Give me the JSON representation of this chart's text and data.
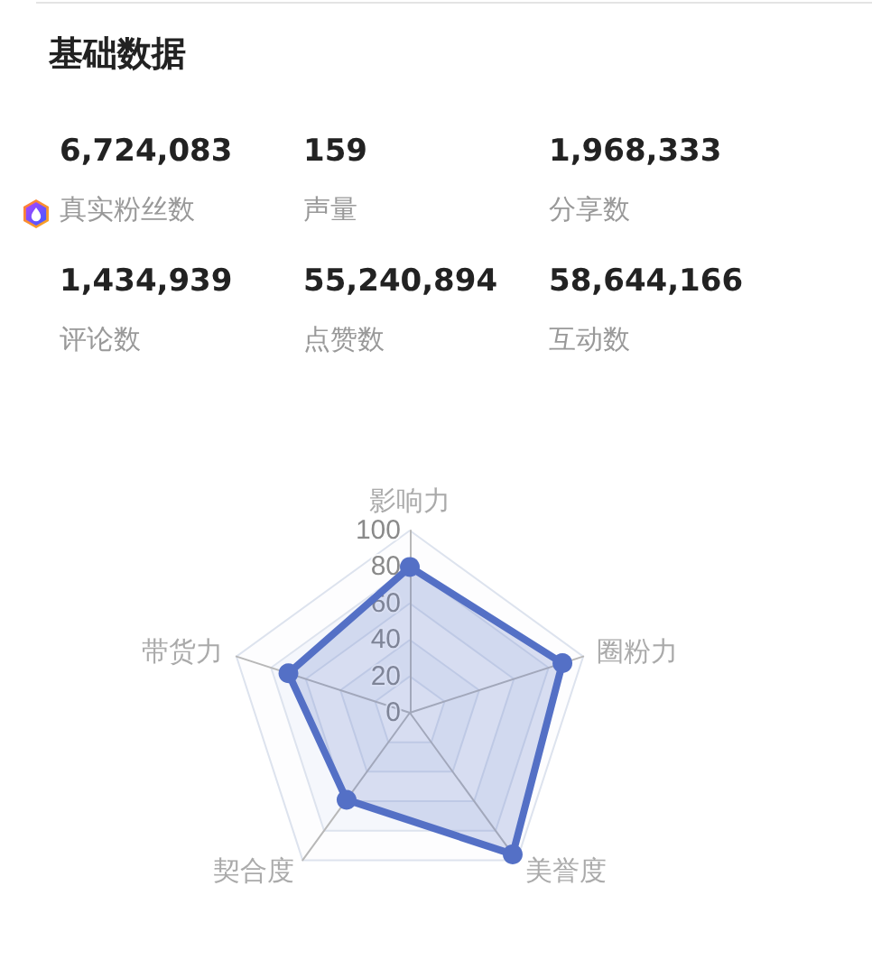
{
  "chart_data": [
    {
      "type": "other",
      "title": "基础数据",
      "categories": [
        "真实粉丝数",
        "声量",
        "分享数",
        "评论数",
        "点赞数",
        "互动数"
      ],
      "value_labels": [
        "6,724,083",
        "159",
        "1,968,333",
        "1,434,939",
        "55,240,894",
        "58,644,166"
      ]
    },
    {
      "type": "radar",
      "categories": [
        "影响力",
        "圈粉力",
        "美誉度",
        "契合度",
        "带货力"
      ],
      "series": [
        {
          "color": "#5470c6",
          "values": [
            80,
            88,
            96,
            59,
            70
          ]
        }
      ],
      "ylim": [
        0,
        100
      ],
      "yticks": [
        0,
        20,
        40,
        60,
        80,
        100
      ],
      "grid": true,
      "marker": "circle",
      "line_style": "solid"
    }
  ]
}
